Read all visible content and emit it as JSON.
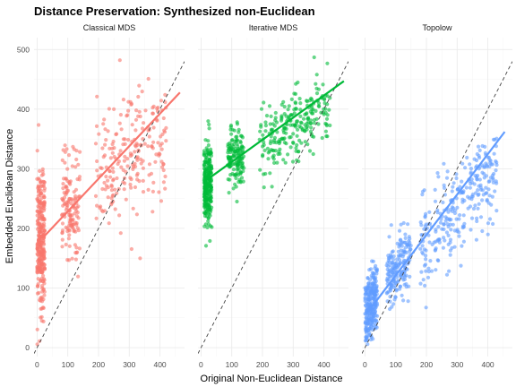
{
  "chart_data": {
    "type": "scatter",
    "title": "Distance Preservation: Synthesized non-Euclidean",
    "xlabel": "Original Non-Euclidean Distance",
    "ylabel": "Embedded Euclidean Distance",
    "xlim": [
      -10,
      480
    ],
    "ylim": [
      -15,
      520
    ],
    "x_ticks": [
      0,
      100,
      200,
      300,
      400
    ],
    "y_ticks": [
      0,
      100,
      200,
      300,
      400,
      500
    ],
    "reference_line": "y = x (dashed)",
    "grid": true,
    "legend": "none",
    "panels": [
      {
        "name": "Classical MDS",
        "color": "#F8766D",
        "trend": [
          [
            20,
            185
          ],
          [
            465,
            428
          ]
        ],
        "clusters": [
          {
            "x_min": 0,
            "x_max": 25,
            "y_mean": 185,
            "y_sd": 65,
            "n": 300
          },
          {
            "x_min": 80,
            "x_max": 140,
            "y_mean": 235,
            "y_sd": 40,
            "n": 140
          },
          {
            "x_min": 190,
            "x_max": 420,
            "y_mean": 320,
            "y_sd": 50,
            "n": 220,
            "slope": 0.35
          }
        ]
      },
      {
        "name": "Iterative MDS",
        "color": "#00BA38",
        "trend": [
          [
            15,
            280
          ],
          [
            465,
            447
          ]
        ],
        "clusters": [
          {
            "x_min": 10,
            "x_max": 35,
            "y_mean": 275,
            "y_sd": 35,
            "n": 260
          },
          {
            "x_min": 85,
            "x_max": 140,
            "y_mean": 318,
            "y_sd": 25,
            "n": 150
          },
          {
            "x_min": 190,
            "x_max": 420,
            "y_mean": 375,
            "y_sd": 30,
            "n": 240,
            "slope": 0.3
          }
        ]
      },
      {
        "name": "Topolow",
        "color": "#619CFF",
        "trend": [
          [
            10,
            60
          ],
          [
            455,
            362
          ]
        ],
        "clusters": [
          {
            "x_min": 0,
            "x_max": 40,
            "y_mean": 75,
            "y_sd": 30,
            "n": 260,
            "slope": 0.8
          },
          {
            "x_min": 70,
            "x_max": 150,
            "y_mean": 140,
            "y_sd": 25,
            "n": 180,
            "slope": 0.6
          },
          {
            "x_min": 180,
            "x_max": 430,
            "y_mean": 235,
            "y_sd": 38,
            "n": 280,
            "slope": 0.55
          }
        ]
      }
    ]
  }
}
